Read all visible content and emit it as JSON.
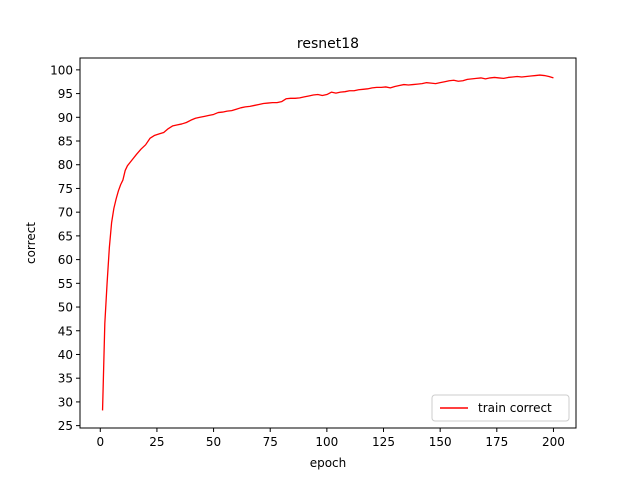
{
  "chart_data": {
    "type": "line",
    "title": "resnet18",
    "xlabel": "epoch",
    "ylabel": "correct",
    "xlim": [
      -8.95,
      209.95
    ],
    "ylim": [
      24.5,
      102.5
    ],
    "xticks": [
      0,
      25,
      50,
      75,
      100,
      125,
      150,
      175,
      200
    ],
    "yticks": [
      25,
      30,
      35,
      40,
      45,
      50,
      55,
      60,
      65,
      70,
      75,
      80,
      85,
      90,
      95,
      100
    ],
    "grid": false,
    "legend_position": "lower right",
    "series": [
      {
        "name": "train correct",
        "color": "#ff0000",
        "x": [
          1,
          2,
          3,
          4,
          5,
          6,
          7,
          8,
          9,
          10,
          11,
          12,
          14,
          16,
          18,
          20,
          22,
          24,
          26,
          28,
          30,
          32,
          34,
          36,
          38,
          40,
          42,
          44,
          46,
          48,
          50,
          52,
          54,
          56,
          58,
          60,
          62,
          64,
          66,
          68,
          70,
          72,
          74,
          76,
          78,
          80,
          82,
          84,
          86,
          88,
          90,
          92,
          94,
          96,
          98,
          100,
          102,
          104,
          106,
          108,
          110,
          112,
          114,
          116,
          118,
          120,
          122,
          124,
          126,
          128,
          130,
          132,
          134,
          136,
          138,
          140,
          142,
          144,
          146,
          148,
          150,
          152,
          154,
          156,
          158,
          160,
          162,
          164,
          166,
          168,
          170,
          172,
          174,
          176,
          178,
          180,
          182,
          184,
          186,
          188,
          190,
          192,
          194,
          196,
          198,
          200
        ],
        "y": [
          28.2,
          46.5,
          55.0,
          62.5,
          67.8,
          70.8,
          72.8,
          74.5,
          75.8,
          76.8,
          78.8,
          79.8,
          81.0,
          82.2,
          83.3,
          84.2,
          85.6,
          86.2,
          86.5,
          86.8,
          87.6,
          88.2,
          88.4,
          88.6,
          88.9,
          89.4,
          89.8,
          90.0,
          90.2,
          90.4,
          90.6,
          91.0,
          91.1,
          91.3,
          91.4,
          91.7,
          92.0,
          92.2,
          92.3,
          92.5,
          92.7,
          92.9,
          93.0,
          93.1,
          93.1,
          93.3,
          93.9,
          94.0,
          94.0,
          94.1,
          94.3,
          94.5,
          94.7,
          94.8,
          94.6,
          94.8,
          95.3,
          95.1,
          95.3,
          95.4,
          95.6,
          95.6,
          95.8,
          95.9,
          96.0,
          96.2,
          96.3,
          96.3,
          96.4,
          96.2,
          96.5,
          96.7,
          96.9,
          96.8,
          96.9,
          97.0,
          97.1,
          97.3,
          97.2,
          97.1,
          97.3,
          97.5,
          97.7,
          97.8,
          97.6,
          97.7,
          98.0,
          98.1,
          98.2,
          98.3,
          98.1,
          98.3,
          98.4,
          98.3,
          98.2,
          98.4,
          98.5,
          98.6,
          98.5,
          98.6,
          98.7,
          98.8,
          98.9,
          98.8,
          98.6,
          98.3
        ]
      }
    ]
  }
}
